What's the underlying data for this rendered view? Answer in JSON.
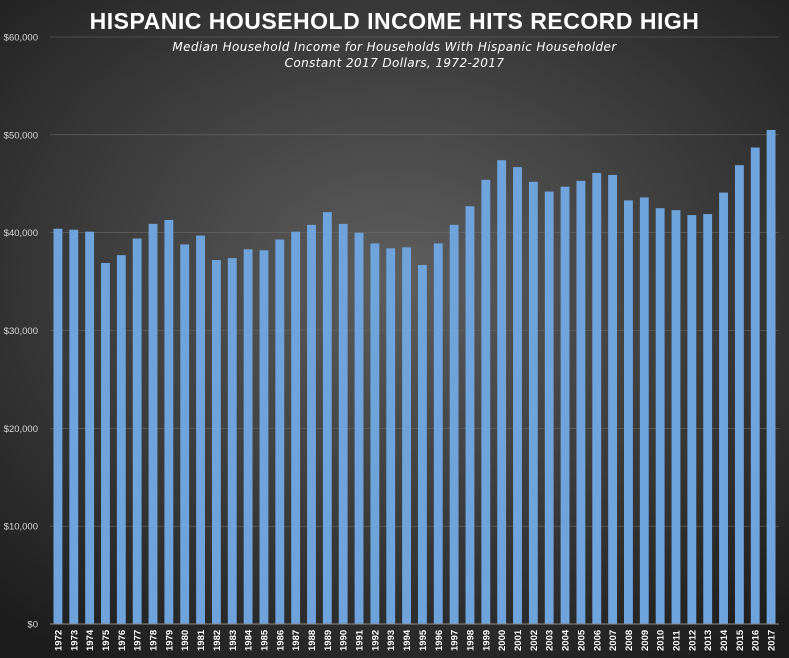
{
  "chart_data": {
    "type": "bar",
    "title": "HISPANIC HOUSEHOLD INCOME HITS RECORD HIGH",
    "subtitle_lines": [
      "Median Household Income for Households With Hispanic Householder",
      "Constant 2017 Dollars, 1972-2017"
    ],
    "xlabel": "",
    "ylabel": "",
    "ylim": [
      0,
      60000
    ],
    "yticks": [
      0,
      10000,
      20000,
      30000,
      40000,
      50000,
      60000
    ],
    "ytick_labels": [
      "$0",
      "$10,000",
      "$20,000",
      "$30,000",
      "$40,000",
      "$50,000",
      "$60,000"
    ],
    "grid": true,
    "bar_color": "#6fa3dc",
    "categories": [
      "1972",
      "1973",
      "1974",
      "1975",
      "1976",
      "1977",
      "1978",
      "1979",
      "1980",
      "1981",
      "1982",
      "1983",
      "1984",
      "1985",
      "1986",
      "1987",
      "1988",
      "1989",
      "1990",
      "1991",
      "1992",
      "1993",
      "1994",
      "1995",
      "1996",
      "1997",
      "1998",
      "1999",
      "2000",
      "2001",
      "2002",
      "2003",
      "2004",
      "2005",
      "2006",
      "2007",
      "2008",
      "2009",
      "2010",
      "2011",
      "2012",
      "2013",
      "2014",
      "2015",
      "2016",
      "2017"
    ],
    "values": [
      40400,
      40300,
      40100,
      36900,
      37700,
      39400,
      40900,
      41300,
      38800,
      39700,
      37200,
      37400,
      38300,
      38200,
      39300,
      40100,
      40800,
      42100,
      40900,
      40000,
      38900,
      38400,
      38500,
      36700,
      38900,
      40800,
      42700,
      45400,
      47400,
      46700,
      45200,
      44200,
      44700,
      45300,
      46100,
      45900,
      43300,
      43600,
      42500,
      42300,
      41800,
      41900,
      44100,
      46900,
      48700,
      50500
    ]
  }
}
